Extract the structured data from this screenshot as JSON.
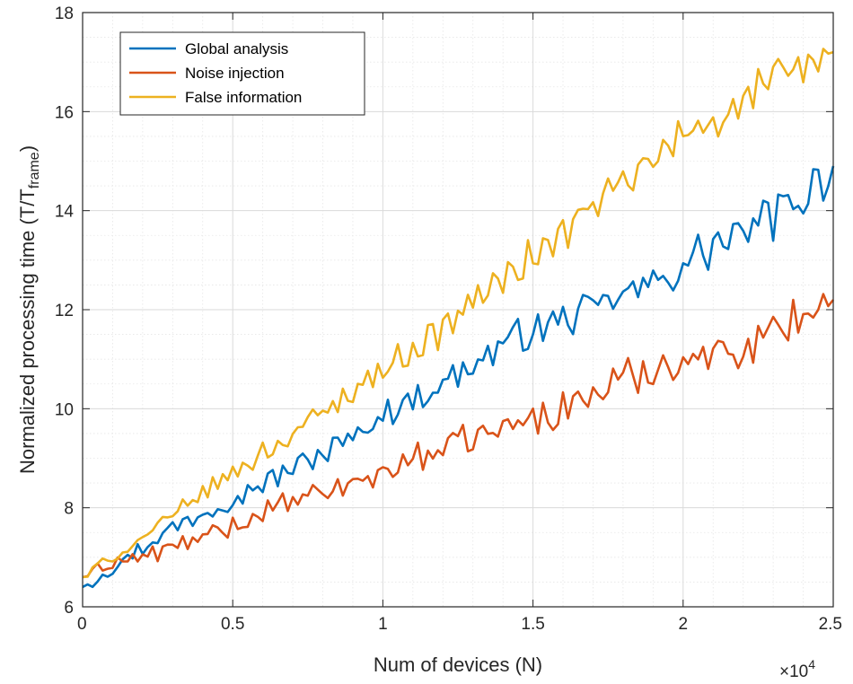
{
  "chart_data": {
    "type": "line",
    "title": "",
    "xlabel": "Num of devices (N)",
    "ylabel_main": "Normalized processing time (T/T",
    "ylabel_sub": "frame",
    "ylabel_close": ")",
    "x_multiplier": "×10",
    "x_multiplier_exp": "4",
    "xlim": [
      0,
      2.5
    ],
    "ylim": [
      6,
      18
    ],
    "x_ticks": [
      0,
      0.5,
      1,
      1.5,
      2,
      2.5
    ],
    "x_tick_labels": [
      "0",
      "0.5",
      "1",
      "1.5",
      "2",
      "2.5"
    ],
    "y_ticks": [
      6,
      8,
      10,
      12,
      14,
      16,
      18
    ],
    "y_tick_labels": [
      "6",
      "8",
      "10",
      "12",
      "14",
      "16",
      "18"
    ],
    "grid": true,
    "minor_grid": true,
    "legend_position": "top-left",
    "x": [
      0,
      0.1,
      0.2,
      0.3,
      0.4,
      0.5,
      0.6,
      0.7,
      0.8,
      0.9,
      1.0,
      1.1,
      1.2,
      1.3,
      1.4,
      1.5,
      1.6,
      1.7,
      1.8,
      1.9,
      2.0,
      2.1,
      2.2,
      2.3,
      2.4,
      2.5
    ],
    "series": [
      {
        "name": "Global analysis",
        "color": "#0072bd",
        "values": [
          6.4,
          6.8,
          7.2,
          7.6,
          7.9,
          8.2,
          8.5,
          8.8,
          9.1,
          9.4,
          9.9,
          10.2,
          10.5,
          10.9,
          11.3,
          11.6,
          11.8,
          12.0,
          12.3,
          12.5,
          12.9,
          13.3,
          13.5,
          13.9,
          14.3,
          14.9
        ]
      },
      {
        "name": "Noise injection",
        "color": "#d95319",
        "values": [
          6.6,
          6.9,
          7.0,
          7.2,
          7.4,
          7.6,
          7.9,
          8.1,
          8.3,
          8.5,
          8.7,
          9.0,
          9.2,
          9.4,
          9.6,
          9.8,
          10.0,
          10.3,
          10.6,
          10.8,
          11.0,
          11.1,
          11.3,
          11.6,
          11.9,
          12.2
        ]
      },
      {
        "name": "False information",
        "color": "#edb120",
        "values": [
          6.6,
          7.0,
          7.4,
          7.8,
          8.3,
          8.7,
          9.1,
          9.5,
          9.9,
          10.4,
          10.8,
          11.2,
          11.6,
          12.2,
          12.6,
          13.1,
          13.5,
          14.1,
          14.5,
          15.0,
          15.5,
          15.9,
          16.2,
          16.6,
          16.9,
          17.2
        ]
      }
    ]
  }
}
